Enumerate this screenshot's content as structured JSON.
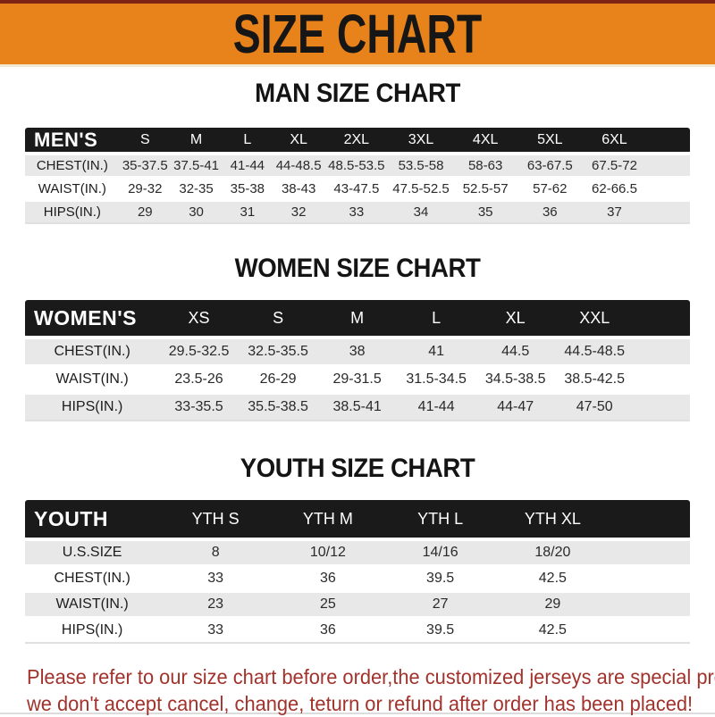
{
  "header": {
    "title": "SIZE CHART"
  },
  "sections": [
    {
      "heading": "MAN SIZE CHART",
      "table": {
        "header_label": "MEN'S",
        "columns": [
          "S",
          "M",
          "L",
          "XL",
          "2XL",
          "3XL",
          "4XL",
          "5XL",
          "6XL"
        ],
        "rows": [
          {
            "label": "CHEST(IN.)",
            "values": [
              "35-37.5",
              "37.5-41",
              "41-44",
              "44-48.5",
              "48.5-53.5",
              "53.5-58",
              "58-63",
              "63-67.5",
              "67.5-72"
            ]
          },
          {
            "label": "WAIST(IN.)",
            "values": [
              "29-32",
              "32-35",
              "35-38",
              "38-43",
              "43-47.5",
              "47.5-52.5",
              "52.5-57",
              "57-62",
              "62-66.5"
            ]
          },
          {
            "label": "HIPS(IN.)",
            "values": [
              "29",
              "30",
              "31",
              "32",
              "33",
              "34",
              "35",
              "36",
              "37"
            ]
          }
        ]
      }
    },
    {
      "heading": "WOMEN SIZE CHART",
      "table": {
        "header_label": "WOMEN'S",
        "columns": [
          "XS",
          "S",
          "M",
          "L",
          "XL",
          "XXL"
        ],
        "rows": [
          {
            "label": "CHEST(IN.)",
            "values": [
              "29.5-32.5",
              "32.5-35.5",
              "38",
              "41",
              "44.5",
              "44.5-48.5"
            ]
          },
          {
            "label": "WAIST(IN.)",
            "values": [
              "23.5-26",
              "26-29",
              "29-31.5",
              "31.5-34.5",
              "34.5-38.5",
              "38.5-42.5"
            ]
          },
          {
            "label": "HIPS(IN.)",
            "values": [
              "33-35.5",
              "35.5-38.5",
              "38.5-41",
              "41-44",
              "44-47",
              "47-50"
            ]
          }
        ]
      }
    },
    {
      "heading": "YOUTH SIZE CHART",
      "table": {
        "header_label": "YOUTH",
        "columns": [
          "YTH S",
          "YTH M",
          "YTH L",
          "YTH XL"
        ],
        "rows": [
          {
            "label": "U.S.SIZE",
            "values": [
              "8",
              "10/12",
              "14/16",
              "18/20"
            ]
          },
          {
            "label": "CHEST(IN.)",
            "values": [
              "33",
              "36",
              "39.5",
              "42.5"
            ]
          },
          {
            "label": "WAIST(IN.)",
            "values": [
              "23",
              "25",
              "27",
              "29"
            ]
          },
          {
            "label": "HIPS(IN.)",
            "values": [
              "33",
              "36",
              "39.5",
              "42.5"
            ]
          }
        ]
      }
    }
  ],
  "footer": {
    "line1": "Please refer to our size chart before order,the customized jerseys are special products,",
    "line2": "we don't accept cancel, change, teturn or refund after order has been placed!"
  },
  "colors": {
    "banner_orange": "#e8831c",
    "banner_top_stripe": "#7e2414",
    "banner_bottom_stripe": "#f1e9d2",
    "table_header_black": "#1a1a1a",
    "row_gray": "#e8e8e8",
    "notice_red": "#a2322c"
  }
}
